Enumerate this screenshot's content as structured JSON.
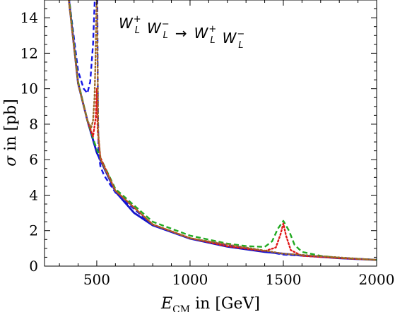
{
  "chart_data": {
    "type": "line",
    "title": {
      "parts": [
        {
          "base": "W",
          "sub": "L",
          "sup": "+"
        },
        {
          "base": "W",
          "sub": "L",
          "sup": "−"
        },
        {
          "arrow": "→"
        },
        {
          "base": "W",
          "sub": "L",
          "sup": "+"
        },
        {
          "base": "W",
          "sub": "L",
          "sup": "−"
        }
      ]
    },
    "xlabel": {
      "base": "E",
      "sub": "CM",
      "rest": " in [GeV]"
    },
    "ylabel": {
      "sym": "σ",
      "rest": " in [pb]"
    },
    "xlim": [
      220,
      2000
    ],
    "ylim": [
      0,
      15
    ],
    "xticks": [
      500,
      1000,
      1500,
      2000
    ],
    "yticks": [
      0,
      2,
      4,
      6,
      8,
      10,
      12,
      14
    ],
    "series": [
      {
        "color": "#1515c8",
        "style": "solid",
        "x": [
          350,
          400,
          450,
          500,
          600,
          700,
          800,
          1000,
          1200,
          1400,
          1600,
          1800,
          2000
        ],
        "y": [
          15.1,
          10.3,
          8.2,
          6.4,
          4.2,
          3.0,
          2.3,
          1.55,
          1.1,
          0.8,
          0.6,
          0.45,
          0.35
        ]
      },
      {
        "color": "#1515e6",
        "style": "dashed",
        "x": [
          350,
          400,
          430,
          450,
          465,
          480,
          490,
          496,
          498,
          500,
          503,
          506,
          510,
          520,
          540,
          600,
          800,
          1000,
          1500,
          2000
        ],
        "y": [
          15.2,
          11.0,
          10.0,
          9.75,
          10.4,
          12.5,
          15.2,
          15.2,
          15.2,
          15.2,
          15.2,
          9.0,
          6.3,
          5.6,
          5.1,
          4.15,
          2.3,
          1.55,
          0.65,
          0.35
        ]
      },
      {
        "color": "#22aa22",
        "style": "dashed",
        "x": [
          350,
          400,
          450,
          480,
          500,
          520,
          600,
          800,
          1000,
          1200,
          1300,
          1400,
          1440,
          1470,
          1500,
          1530,
          1560,
          1600,
          1700,
          1800,
          2000
        ],
        "y": [
          15.2,
          10.4,
          8.2,
          7.2,
          6.6,
          6.1,
          4.35,
          2.5,
          1.72,
          1.27,
          1.13,
          1.08,
          1.4,
          2.1,
          2.55,
          2.0,
          1.2,
          0.8,
          0.58,
          0.46,
          0.35
        ]
      },
      {
        "color": "#e01818",
        "style": "dotted",
        "x": [
          350,
          400,
          450,
          480,
          495,
          500,
          505,
          520,
          600,
          800,
          1000,
          1200,
          1400,
          1460,
          1485,
          1500,
          1515,
          1540,
          1600,
          1800,
          2000
        ],
        "y": [
          15.0,
          10.3,
          8.2,
          7.3,
          8.4,
          10.0,
          7.6,
          6.1,
          4.25,
          2.35,
          1.58,
          1.12,
          0.85,
          1.05,
          1.8,
          2.4,
          1.7,
          0.9,
          0.58,
          0.45,
          0.35
        ]
      },
      {
        "color": "#a06a2a",
        "style": "dotted",
        "x": [
          350,
          400,
          450,
          470,
          480,
          488,
          493,
          497,
          500,
          503,
          508,
          520,
          600,
          800,
          1000,
          1500,
          2000
        ],
        "y": [
          15.0,
          10.3,
          8.2,
          7.8,
          8.2,
          9.5,
          11.5,
          14.0,
          15.2,
          13.0,
          7.5,
          6.0,
          4.25,
          2.35,
          1.57,
          0.7,
          0.35
        ]
      }
    ]
  }
}
